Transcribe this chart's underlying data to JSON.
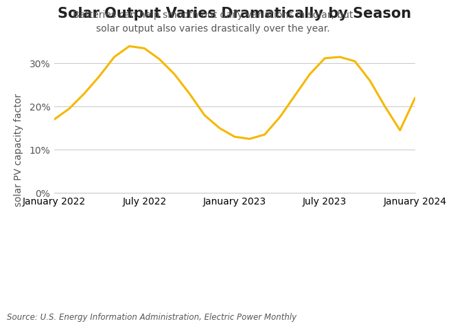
{
  "title": "Solar Output Varies Dramatically by Season",
  "subtitle": "Batteries can help smooth out daily variations in solar, but\nsolar output also varies drastically over the year.",
  "ylabel": "solar PV capacity factor",
  "source": "Source: U.S. Energy Information Administration, Electric Power Monthly",
  "line_color": "#F5B800",
  "line_width": 2.2,
  "background_color": "#ffffff",
  "x_tick_labels": [
    "January 2022",
    "July 2022",
    "January 2023",
    "July 2023",
    "January 2024"
  ],
  "x_tick_positions": [
    0,
    6,
    12,
    18,
    24
  ],
  "ylim": [
    -18,
    38
  ],
  "yticks": [
    0,
    10,
    20,
    30
  ],
  "ytick_labels": [
    "0%",
    "10%",
    "20%",
    "30%"
  ],
  "data_x": [
    0,
    1,
    2,
    3,
    4,
    5,
    6,
    7,
    8,
    9,
    10,
    11,
    12,
    13,
    14,
    15,
    16,
    17,
    18,
    19,
    20,
    21,
    22,
    23,
    24
  ],
  "data_y": [
    17.0,
    19.5,
    23.0,
    27.0,
    31.5,
    34.0,
    33.5,
    31.0,
    27.5,
    23.0,
    18.0,
    15.0,
    13.0,
    12.5,
    13.5,
    17.5,
    22.5,
    27.5,
    31.2,
    31.5,
    30.5,
    26.0,
    20.0,
    14.5,
    22.0
  ],
  "title_fontsize": 15,
  "subtitle_fontsize": 10,
  "tick_fontsize": 10,
  "ylabel_fontsize": 10
}
